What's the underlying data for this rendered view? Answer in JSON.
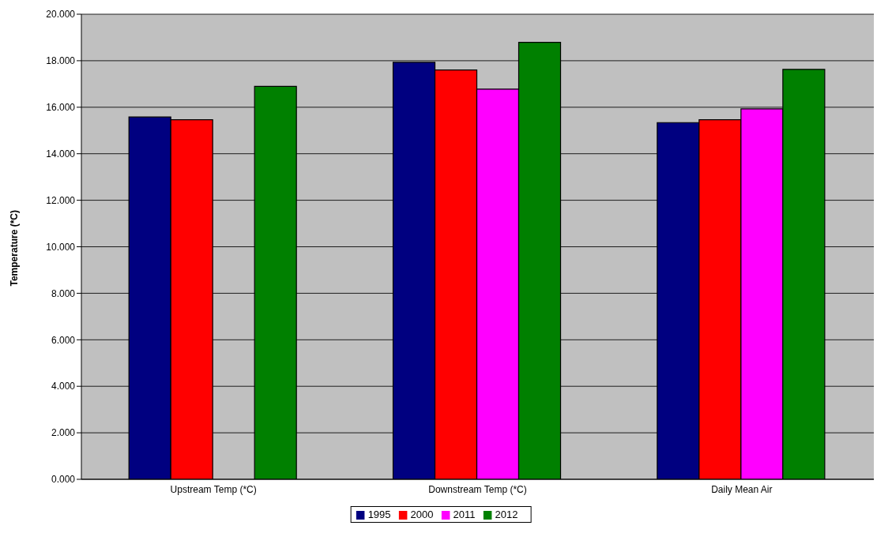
{
  "chart_data": {
    "type": "bar",
    "ylabel": "Temperature (*C)",
    "categories": [
      "Upstream Temp (*C)",
      "Downstream Temp (*C)",
      "Daily Mean Air"
    ],
    "series": [
      {
        "name": "1995",
        "color": "#000080",
        "values": [
          15.58,
          17.93,
          15.34
        ]
      },
      {
        "name": "2000",
        "color": "#ff0000",
        "values": [
          15.46,
          17.6,
          15.46
        ]
      },
      {
        "name": "2011",
        "color": "#ff00ff",
        "values": [
          null,
          16.78,
          15.93
        ]
      },
      {
        "name": "2012",
        "color": "#008000",
        "values": [
          16.9,
          18.79,
          17.63
        ]
      }
    ],
    "ylim": [
      0,
      20
    ],
    "yticks": [
      {
        "value": 0,
        "label": "0.000"
      },
      {
        "value": 2,
        "label": "2.000"
      },
      {
        "value": 4,
        "label": "4.000"
      },
      {
        "value": 6,
        "label": "6.000"
      },
      {
        "value": 8,
        "label": "8.000"
      },
      {
        "value": 10,
        "label": "10.000"
      },
      {
        "value": 12,
        "label": "12.000"
      },
      {
        "value": 14,
        "label": "14.000"
      },
      {
        "value": 16,
        "label": "16.000"
      },
      {
        "value": 18,
        "label": "18.000"
      },
      {
        "value": 20,
        "label": "20.000"
      }
    ],
    "grid": "y",
    "legend": "bottom"
  }
}
